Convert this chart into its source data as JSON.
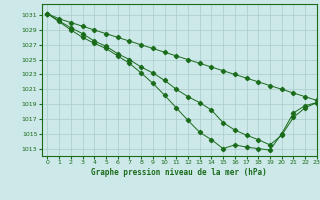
{
  "title": "Graphe pression niveau de la mer (hPa)",
  "background_color": "#cce8e8",
  "grid_color": "#aacccc",
  "line_color": "#1a6b1a",
  "marker_color": "#1a6b1a",
  "xlim": [
    -0.5,
    23
  ],
  "ylim": [
    1012,
    1032.5
  ],
  "yticks": [
    1013,
    1015,
    1017,
    1019,
    1021,
    1023,
    1025,
    1027,
    1029,
    1031
  ],
  "xticks": [
    0,
    1,
    2,
    3,
    4,
    5,
    6,
    7,
    8,
    9,
    10,
    11,
    12,
    13,
    14,
    15,
    16,
    17,
    18,
    19,
    20,
    21,
    22,
    23
  ],
  "series1": {
    "x": [
      0,
      1,
      2,
      3,
      4,
      5,
      6,
      7,
      8,
      9,
      10,
      11,
      12,
      13,
      14,
      15,
      16,
      17,
      18,
      19,
      20,
      21,
      22,
      23
    ],
    "y": [
      1031.2,
      1030.5,
      1030.0,
      1029.5,
      1029.0,
      1028.5,
      1028.0,
      1027.5,
      1027.0,
      1026.5,
      1026.0,
      1025.5,
      1025.0,
      1024.5,
      1024.0,
      1023.5,
      1023.0,
      1022.5,
      1022.0,
      1021.5,
      1021.0,
      1020.5,
      1020.0,
      1019.5
    ]
  },
  "series2": {
    "x": [
      0,
      1,
      2,
      3,
      4,
      5,
      6,
      7,
      8,
      9,
      10,
      11,
      12,
      13,
      14,
      15,
      16,
      17,
      18,
      19,
      20,
      21,
      22,
      23
    ],
    "y": [
      1031.2,
      1030.2,
      1029.3,
      1028.5,
      1027.5,
      1026.8,
      1025.8,
      1025.0,
      1024.0,
      1023.2,
      1022.2,
      1021.0,
      1020.0,
      1019.2,
      1018.2,
      1016.5,
      1015.5,
      1014.8,
      1014.2,
      1013.5,
      1014.8,
      1017.2,
      1018.5,
      1019.2
    ]
  },
  "series3": {
    "x": [
      0,
      2,
      3,
      4,
      5,
      6,
      7,
      8,
      9,
      10,
      11,
      12,
      13,
      14,
      15,
      16,
      17,
      18,
      19,
      20,
      21,
      22,
      23
    ],
    "y": [
      1031.2,
      1029.0,
      1028.0,
      1027.2,
      1026.5,
      1025.5,
      1024.5,
      1023.2,
      1021.8,
      1020.2,
      1018.5,
      1016.8,
      1015.2,
      1014.2,
      1013.0,
      1013.5,
      1013.2,
      1013.0,
      1012.8,
      1015.0,
      1017.8,
      1018.8,
      1019.2
    ]
  }
}
